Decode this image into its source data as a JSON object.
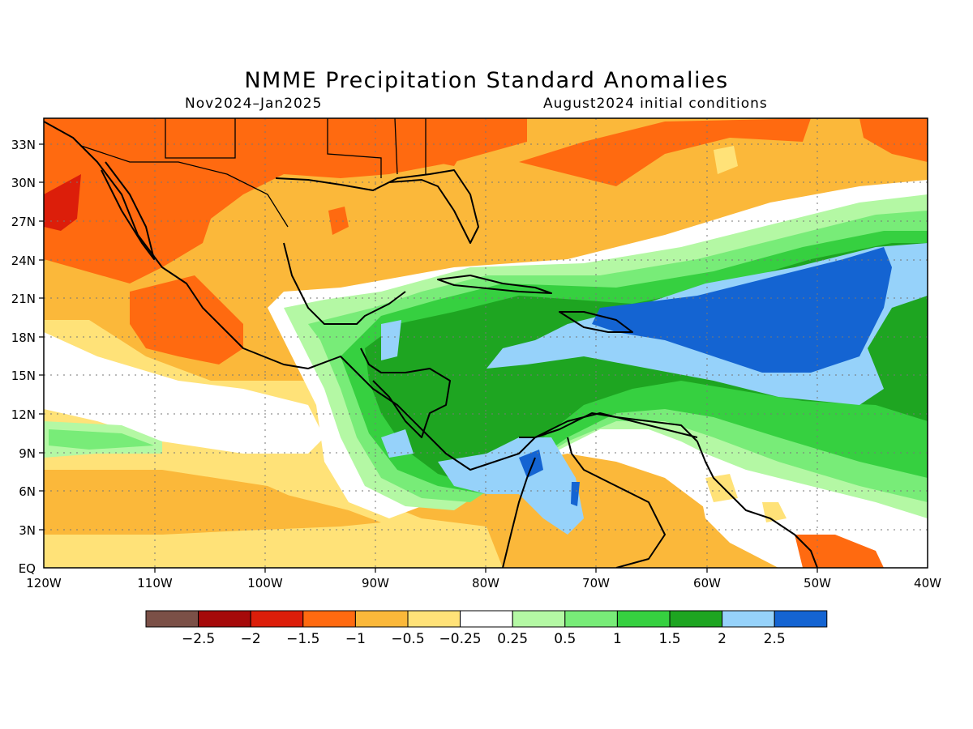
{
  "title": "NMME Precipitation Standard Anomalies",
  "subtitle_left": "Nov2024–Jan2025",
  "subtitle_right": "August2024 initial conditions",
  "map": {
    "lon_range": [
      -120,
      -40
    ],
    "lat_range": [
      0,
      35
    ],
    "lon_ticks": [
      "120W",
      "110W",
      "100W",
      "90W",
      "80W",
      "70W",
      "60W",
      "50W",
      "40W"
    ],
    "lat_ticks": [
      "EQ",
      "3N",
      "6N",
      "9N",
      "12N",
      "15N",
      "18N",
      "21N",
      "24N",
      "27N",
      "30N",
      "33N"
    ],
    "grid": "dotted",
    "features": [
      "Mexico and southern U.S.: below-normal (-0.5 to -1.5)",
      "Caribbean Sea and Central America: above-normal (0.5 to 2)",
      "Tropical Atlantic east of the Antilles: strongly above-normal (2 to >2.5)",
      "Eastern tropical Pacific south of 12N: below-normal (-0.25 to -1)"
    ]
  },
  "colorbar": {
    "labels": [
      "-2.5",
      "-2",
      "-1.5",
      "-1",
      "-0.5",
      "-0.25",
      "0.25",
      "0.5",
      "1",
      "1.5",
      "2",
      "2.5"
    ],
    "colors": [
      "#7b5047",
      "#a50a0a",
      "#dc1e0a",
      "#ff6a10",
      "#fbb83a",
      "#ffe278",
      "#ffffff",
      "#b4f8a4",
      "#78ec78",
      "#36d040",
      "#1ea521",
      "#96d2fa",
      "#1464d2"
    ]
  }
}
